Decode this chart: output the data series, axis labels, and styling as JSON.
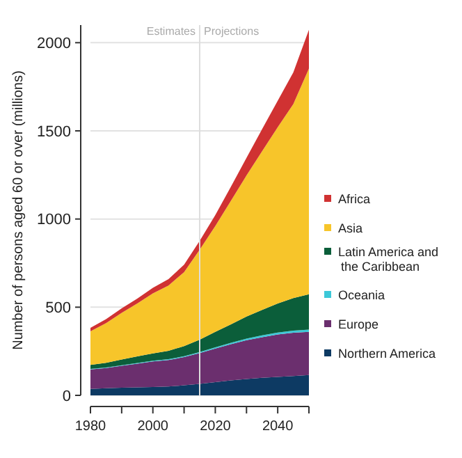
{
  "chart_data": {
    "type": "area",
    "stacked": true,
    "ylabel": "Number of persons aged 60 or over (millions)",
    "x": [
      1980,
      1985,
      1990,
      1995,
      2000,
      2005,
      2010,
      2015,
      2020,
      2025,
      2030,
      2035,
      2040,
      2045,
      2050
    ],
    "series": [
      {
        "name": "Northern America",
        "color": "#0d3a63",
        "values": [
          37,
          40,
          43,
          45,
          47,
          50,
          57,
          65,
          75,
          85,
          93,
          100,
          105,
          110,
          115
        ]
      },
      {
        "name": "Europe",
        "color": "#6b2f6e",
        "values": [
          110,
          115,
          125,
          135,
          145,
          150,
          160,
          175,
          190,
          205,
          220,
          230,
          240,
          245,
          245
        ]
      },
      {
        "name": "Oceania",
        "color": "#3cc8d8",
        "values": [
          3,
          3,
          3,
          4,
          4,
          5,
          5,
          6,
          7,
          8,
          9,
          10,
          11,
          12,
          13
        ]
      },
      {
        "name": "Latin America and the Caribbean",
        "color": "#0b5e3a",
        "values": [
          23,
          27,
          32,
          37,
          42,
          48,
          57,
          70,
          88,
          105,
          125,
          145,
          165,
          185,
          200
        ]
      },
      {
        "name": "Asia",
        "color": "#f7c52a",
        "values": [
          190,
          225,
          265,
          300,
          340,
          370,
          420,
          510,
          600,
          700,
          800,
          900,
          1000,
          1100,
          1280
        ]
      },
      {
        "name": "Africa",
        "color": "#d03232",
        "values": [
          20,
          22,
          25,
          28,
          32,
          36,
          42,
          50,
          62,
          80,
          100,
          125,
          150,
          180,
          220
        ]
      }
    ],
    "xlim": [
      1980,
      2050
    ],
    "xticks": [
      1980,
      {
        "value": 1990,
        "label": null
      },
      2000,
      {
        "value": 2010,
        "label": null
      },
      2020,
      {
        "value": 2030,
        "label": null
      },
      2040,
      {
        "value": 2050,
        "label": null
      }
    ],
    "ylim": [
      0,
      2100
    ],
    "yticks": [
      0,
      500,
      1000,
      1500,
      2000
    ],
    "grid": "y",
    "legend": "right",
    "ref_lines": [
      {
        "axis": "x",
        "value": 2015,
        "label": null,
        "color": "#dddddd"
      }
    ],
    "annotations": [
      "Estimates",
      "Projections"
    ]
  }
}
